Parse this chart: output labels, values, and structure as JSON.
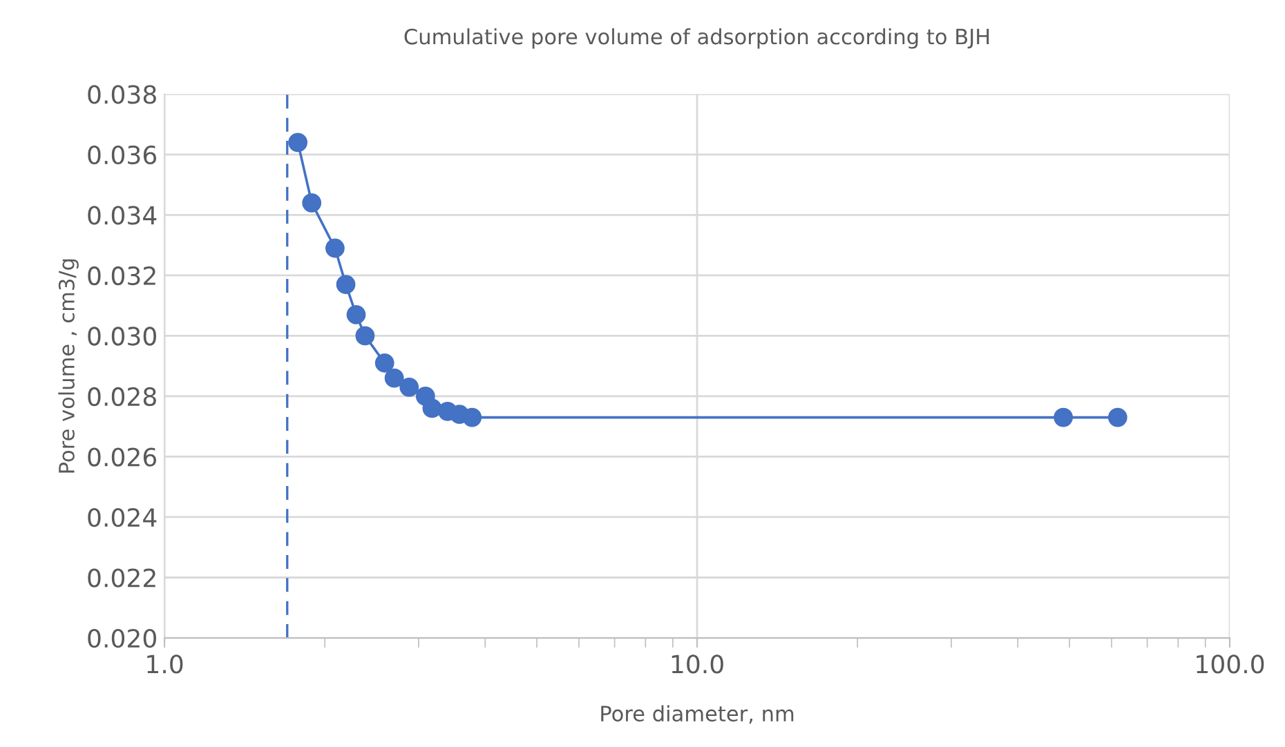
{
  "chart_data": {
    "type": "line",
    "title": "Cumulative pore volume of adsorption according to BJH",
    "xlabel": "Pore diameter, nm",
    "ylabel": "Pore volume , cm3/g",
    "log": "x",
    "x": [
      1.78,
      1.89,
      2.09,
      2.19,
      2.29,
      2.38,
      2.59,
      2.7,
      2.88,
      3.09,
      3.18,
      3.4,
      3.58,
      3.78,
      48.7,
      61.6
    ],
    "series": [
      {
        "color": "#4472c4",
        "values": [
          0.0364,
          0.0344,
          0.0329,
          0.0317,
          0.0307,
          0.03,
          0.0291,
          0.0286,
          0.0283,
          0.028,
          0.0276,
          0.0275,
          0.0274,
          0.0273,
          0.0273,
          0.0273
        ]
      }
    ],
    "marker": "circle",
    "line_style": "solid",
    "grid": true,
    "legend": false,
    "xlim": [
      1,
      100
    ],
    "xticks": [
      {
        "value": 1,
        "label": "1.0"
      },
      {
        "value": 10,
        "label": "10.0"
      },
      {
        "value": 100,
        "label": "100.0"
      }
    ],
    "ylim": [
      0.02,
      0.038
    ],
    "yticks": [
      {
        "value": 0.02,
        "label": "0.020"
      },
      {
        "value": 0.022,
        "label": "0.022"
      },
      {
        "value": 0.024,
        "label": "0.024"
      },
      {
        "value": 0.026,
        "label": "0.026"
      },
      {
        "value": 0.028,
        "label": "0.028"
      },
      {
        "value": 0.03,
        "label": "0.030"
      },
      {
        "value": 0.032,
        "label": "0.032"
      },
      {
        "value": 0.034,
        "label": "0.034"
      },
      {
        "value": 0.036,
        "label": "0.036"
      },
      {
        "value": 0.038,
        "label": "0.038"
      }
    ],
    "ref_lines": [
      {
        "axis": "x",
        "value": 1.7,
        "color": "#4472c4",
        "line_style": "dashed"
      }
    ]
  }
}
